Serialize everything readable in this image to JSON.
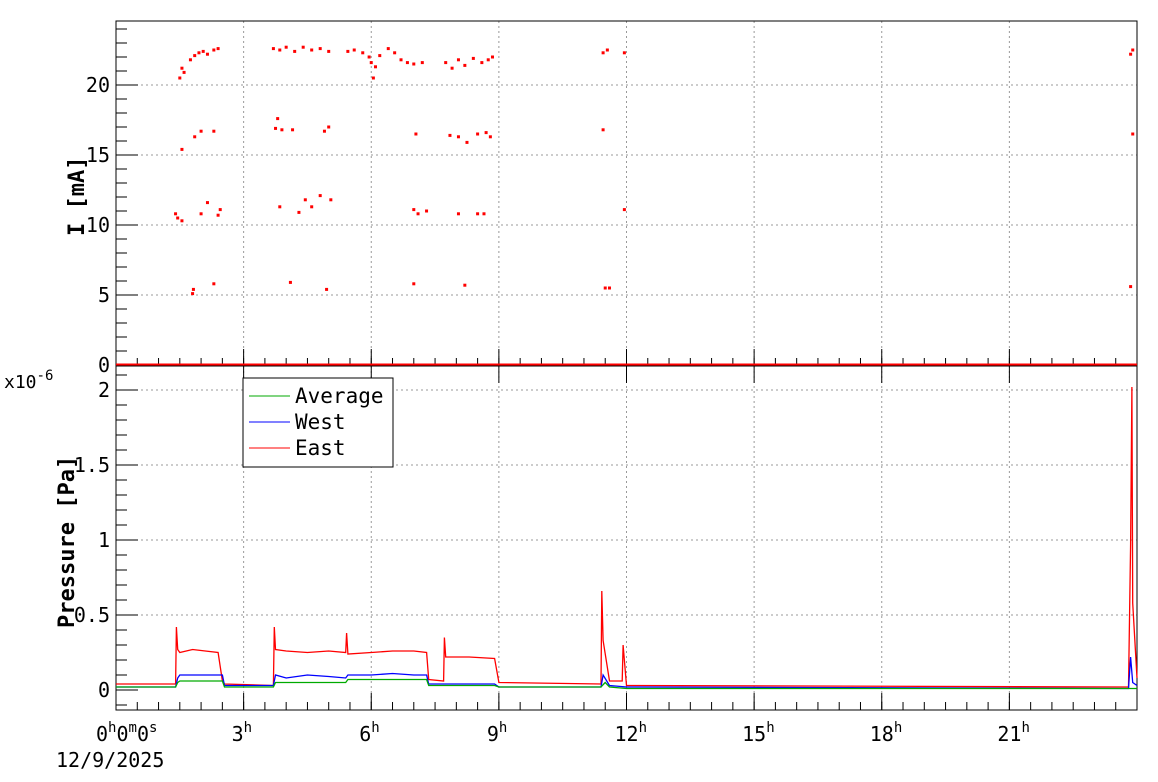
{
  "chart_data": [
    {
      "type": "scatter",
      "panel": "current",
      "ylabel": "I [mA]",
      "yticks": [
        0,
        5,
        10,
        15,
        20
      ],
      "ylim": [
        0,
        24
      ],
      "xlim_hours": [
        0,
        24
      ],
      "grid": true,
      "series": [
        {
          "color": "#ff0000",
          "points": [
            [
              1.5,
              20.5
            ],
            [
              1.55,
              21.2
            ],
            [
              1.6,
              20.9
            ],
            [
              1.75,
              21.8
            ],
            [
              1.85,
              22.1
            ],
            [
              1.95,
              22.3
            ],
            [
              2.05,
              22.4
            ],
            [
              2.15,
              22.2
            ],
            [
              2.3,
              22.5
            ],
            [
              2.4,
              22.6
            ],
            [
              3.7,
              22.6
            ],
            [
              3.85,
              22.5
            ],
            [
              4.0,
              22.7
            ],
            [
              4.2,
              22.4
            ],
            [
              4.4,
              22.7
            ],
            [
              4.6,
              22.5
            ],
            [
              4.8,
              22.6
            ],
            [
              5.0,
              22.4
            ],
            [
              5.45,
              22.4
            ],
            [
              5.6,
              22.5
            ],
            [
              5.8,
              22.3
            ],
            [
              5.95,
              22.0
            ],
            [
              6.0,
              21.6
            ],
            [
              6.05,
              20.5
            ],
            [
              6.1,
              21.3
            ],
            [
              6.2,
              22.1
            ],
            [
              6.4,
              22.6
            ],
            [
              6.55,
              22.3
            ],
            [
              6.7,
              21.8
            ],
            [
              6.85,
              21.6
            ],
            [
              7.0,
              21.5
            ],
            [
              7.2,
              21.6
            ],
            [
              7.75,
              21.6
            ],
            [
              7.9,
              21.2
            ],
            [
              8.05,
              21.8
            ],
            [
              8.2,
              21.4
            ],
            [
              8.4,
              21.9
            ],
            [
              8.6,
              21.6
            ],
            [
              8.75,
              21.8
            ],
            [
              8.85,
              22.0
            ],
            [
              11.45,
              22.3
            ],
            [
              11.55,
              22.5
            ],
            [
              11.95,
              22.3
            ],
            [
              23.85,
              22.2
            ],
            [
              23.9,
              22.5
            ],
            [
              1.55,
              15.4
            ],
            [
              1.85,
              16.3
            ],
            [
              2.0,
              16.7
            ],
            [
              2.3,
              16.7
            ],
            [
              3.75,
              16.9
            ],
            [
              3.8,
              17.6
            ],
            [
              3.9,
              16.8
            ],
            [
              4.15,
              16.8
            ],
            [
              4.9,
              16.7
            ],
            [
              5.0,
              17.0
            ],
            [
              7.05,
              16.5
            ],
            [
              7.85,
              16.4
            ],
            [
              8.05,
              16.3
            ],
            [
              8.25,
              15.9
            ],
            [
              8.5,
              16.5
            ],
            [
              8.7,
              16.6
            ],
            [
              8.8,
              16.3
            ],
            [
              11.45,
              16.8
            ],
            [
              23.9,
              16.5
            ],
            [
              1.4,
              10.8
            ],
            [
              1.45,
              10.5
            ],
            [
              1.55,
              10.3
            ],
            [
              2.0,
              10.8
            ],
            [
              2.15,
              11.6
            ],
            [
              2.4,
              10.7
            ],
            [
              2.45,
              11.1
            ],
            [
              3.85,
              11.3
            ],
            [
              4.3,
              10.9
            ],
            [
              4.45,
              11.8
            ],
            [
              4.6,
              11.3
            ],
            [
              4.8,
              12.1
            ],
            [
              5.05,
              11.8
            ],
            [
              7.0,
              11.1
            ],
            [
              7.1,
              10.8
            ],
            [
              7.3,
              11.0
            ],
            [
              8.05,
              10.8
            ],
            [
              8.5,
              10.8
            ],
            [
              8.65,
              10.8
            ],
            [
              11.95,
              11.1
            ],
            [
              1.8,
              5.1
            ],
            [
              1.82,
              5.4
            ],
            [
              2.3,
              5.8
            ],
            [
              4.1,
              5.9
            ],
            [
              4.95,
              5.4
            ],
            [
              7.0,
              5.8
            ],
            [
              8.2,
              5.7
            ],
            [
              11.5,
              5.5
            ],
            [
              11.6,
              5.5
            ],
            [
              23.85,
              5.6
            ]
          ]
        }
      ]
    },
    {
      "type": "line",
      "panel": "pressure",
      "ylabel": "Pressure [Pa]",
      "exponent_label": "x10",
      "exponent_sup": "-6",
      "yticks": [
        0,
        0.5,
        1,
        1.5,
        2
      ],
      "yticklabels": [
        "0",
        "0.5",
        "1",
        "1.5",
        "2"
      ],
      "ylim": [
        -0.12,
        2.12
      ],
      "grid": true,
      "legend": {
        "placement": "top-left"
      },
      "series": [
        {
          "name": "Average",
          "color": "#00aa00",
          "x": [
            0,
            1.4,
            1.45,
            1.5,
            2.5,
            2.55,
            3.7,
            3.75,
            5.4,
            5.45,
            7.3,
            7.35,
            8.9,
            9.0,
            11.4,
            11.5,
            11.6,
            12.0,
            24.0
          ],
          "y": [
            0.02,
            0.02,
            0.05,
            0.06,
            0.06,
            0.02,
            0.02,
            0.05,
            0.05,
            0.07,
            0.07,
            0.03,
            0.03,
            0.02,
            0.02,
            0.05,
            0.02,
            0.01,
            0.01
          ]
        },
        {
          "name": "West",
          "color": "#0000ff",
          "x": [
            0,
            1.4,
            1.45,
            1.5,
            2.5,
            2.55,
            3.7,
            3.75,
            4.0,
            4.5,
            5.0,
            5.4,
            5.45,
            6.0,
            6.5,
            7.0,
            7.3,
            7.35,
            8.9,
            9.0,
            11.4,
            11.45,
            11.6,
            12.0,
            23.8,
            23.85,
            23.9,
            24.0
          ],
          "y": [
            0.02,
            0.02,
            0.08,
            0.1,
            0.1,
            0.03,
            0.03,
            0.1,
            0.08,
            0.1,
            0.09,
            0.08,
            0.1,
            0.1,
            0.11,
            0.1,
            0.1,
            0.04,
            0.04,
            0.02,
            0.02,
            0.1,
            0.03,
            0.02,
            0.01,
            0.22,
            0.05,
            0.03
          ]
        },
        {
          "name": "East",
          "color": "#ff0000",
          "x": [
            0,
            1.4,
            1.42,
            1.45,
            1.5,
            1.8,
            2.1,
            2.4,
            2.5,
            2.55,
            3.7,
            3.72,
            3.75,
            4.0,
            4.5,
            5.0,
            5.4,
            5.42,
            5.45,
            6.0,
            6.5,
            7.0,
            7.3,
            7.35,
            7.7,
            7.72,
            7.75,
            8.3,
            8.9,
            9.0,
            11.4,
            11.42,
            11.45,
            11.6,
            11.9,
            11.92,
            12.0,
            23.8,
            23.85,
            23.88,
            23.9,
            24.0
          ],
          "y": [
            0.04,
            0.04,
            0.42,
            0.27,
            0.25,
            0.27,
            0.26,
            0.25,
            0.06,
            0.04,
            0.03,
            0.42,
            0.27,
            0.26,
            0.25,
            0.26,
            0.25,
            0.38,
            0.24,
            0.25,
            0.26,
            0.26,
            0.25,
            0.07,
            0.06,
            0.35,
            0.22,
            0.22,
            0.21,
            0.05,
            0.04,
            0.66,
            0.33,
            0.06,
            0.06,
            0.3,
            0.03,
            0.02,
            0.97,
            2.02,
            0.58,
            0.08
          ]
        }
      ]
    }
  ],
  "xaxis": {
    "ticks_hours": [
      0,
      3,
      6,
      9,
      12,
      15,
      18,
      21
    ],
    "first_tick": {
      "h": "0",
      "m": "0",
      "s": "0"
    },
    "tick_labels": [
      "3",
      "6",
      "9",
      "12",
      "15",
      "18",
      "21"
    ],
    "hour_sup": "h",
    "min_sup": "m",
    "sec_sup": "s",
    "date": "12/9/2025"
  },
  "legend": {
    "items": [
      {
        "label": "Average",
        "color": "#00aa00"
      },
      {
        "label": "West",
        "color": "#0000ff"
      },
      {
        "label": "East",
        "color": "#ff0000"
      }
    ]
  },
  "colors": {
    "frame": "#000000",
    "grid": "#999999",
    "background": "#ffffff"
  }
}
